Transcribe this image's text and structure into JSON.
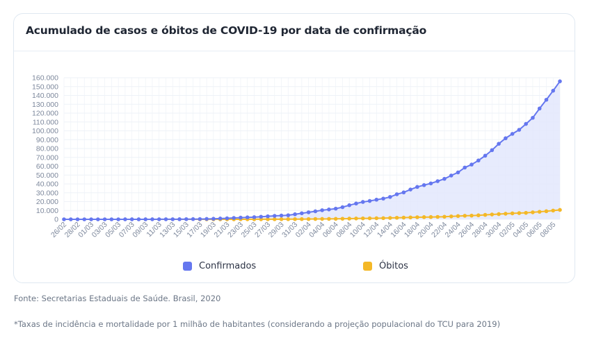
{
  "title": "Acumulado de casos e óbitos de COVID-19 por data de confirmação",
  "legend": {
    "confirmed_label": "Confirmados",
    "deaths_label": "Óbitos"
  },
  "colors": {
    "confirmed": "#6577ef",
    "confirmed_fill": "#e3e7fd",
    "deaths": "#f4b827",
    "grid": "#eef2f7",
    "axis_text": "#7d889c"
  },
  "footer": {
    "source": "Fonte: Secretarias Estaduais de Saúde. Brasil, 2020",
    "note": "*Taxas de incidência e mortalidade por 1 milhão de habitantes (considerando a projeção populacional do TCU para 2019)"
  },
  "chart_data": {
    "type": "area",
    "title": "Acumulado de casos e óbitos de COVID-19 por data de confirmação",
    "xlabel": "",
    "ylabel": "",
    "ylim": [
      0,
      160000
    ],
    "yticks": [
      "0",
      "10.000",
      "20.000",
      "30.000",
      "40.000",
      "50.000",
      "60.000",
      "70.000",
      "80.000",
      "90.000",
      "100.000",
      "110.000",
      "120.000",
      "130.000",
      "140.000",
      "150.000",
      "160.000"
    ],
    "x": [
      "26/02",
      "27/02",
      "28/02",
      "29/02",
      "01/03",
      "02/03",
      "03/03",
      "04/03",
      "05/03",
      "06/03",
      "07/03",
      "08/03",
      "09/03",
      "10/03",
      "11/03",
      "12/03",
      "13/03",
      "14/03",
      "15/03",
      "16/03",
      "17/03",
      "18/03",
      "19/03",
      "20/03",
      "21/03",
      "22/03",
      "23/03",
      "24/03",
      "25/03",
      "26/03",
      "27/03",
      "28/03",
      "29/03",
      "30/03",
      "31/03",
      "01/04",
      "02/04",
      "03/04",
      "04/04",
      "05/04",
      "06/04",
      "07/04",
      "08/04",
      "09/04",
      "10/04",
      "11/04",
      "12/04",
      "13/04",
      "14/04",
      "15/04",
      "16/04",
      "17/04",
      "18/04",
      "19/04",
      "20/04",
      "21/04",
      "22/04",
      "23/04",
      "24/04",
      "25/04",
      "26/04",
      "27/04",
      "28/04",
      "29/04",
      "30/04",
      "01/05",
      "02/05",
      "03/05",
      "04/05",
      "05/05",
      "06/05",
      "07/05",
      "08/05",
      "09/05"
    ],
    "x_tick_labels": [
      "26/02",
      "28/02",
      "01/03",
      "03/03",
      "05/03",
      "07/03",
      "09/03",
      "11/03",
      "13/03",
      "15/03",
      "17/03",
      "19/03",
      "21/03",
      "23/03",
      "25/03",
      "27/03",
      "29/03",
      "31/03",
      "02/04",
      "04/04",
      "06/04",
      "08/04",
      "10/04",
      "12/04",
      "14/04",
      "16/04",
      "18/04",
      "20/04",
      "22/04",
      "24/04",
      "26/04",
      "28/04",
      "30/04",
      "02/05",
      "04/05",
      "06/05",
      "08/05"
    ],
    "grid": true,
    "legend_position": "bottom",
    "series": [
      {
        "name": "Confirmados",
        "values": [
          1,
          1,
          1,
          2,
          2,
          2,
          2,
          3,
          8,
          13,
          19,
          25,
          25,
          34,
          52,
          77,
          98,
          121,
          200,
          234,
          291,
          428,
          621,
          904,
          1128,
          1546,
          1891,
          2201,
          2433,
          2915,
          3417,
          3904,
          4256,
          4579,
          5717,
          6836,
          7910,
          9056,
          10278,
          11130,
          12056,
          13717,
          15927,
          17857,
          19638,
          20727,
          22169,
          23430,
          25262,
          28320,
          30425,
          33682,
          36599,
          38654,
          40581,
          43079,
          45757,
          49492,
          52995,
          58509,
          61888,
          66501,
          71886,
          78162,
          85380,
          91589,
          96559,
          101147,
          107780,
          114715,
          125218,
          135106,
          145328,
          155939
        ]
      },
      {
        "name": "Óbitos",
        "values": [
          0,
          0,
          0,
          0,
          0,
          0,
          0,
          0,
          0,
          0,
          0,
          0,
          0,
          0,
          0,
          0,
          0,
          0,
          0,
          0,
          1,
          3,
          6,
          11,
          18,
          25,
          34,
          46,
          57,
          77,
          92,
          111,
          136,
          159,
          201,
          241,
          299,
          359,
          432,
          486,
          553,
          667,
          800,
          941,
          1056,
          1124,
          1223,
          1328,
          1532,
          1736,
          1924,
          2141,
          2347,
          2462,
          2575,
          2741,
          2906,
          3313,
          3670,
          4016,
          4205,
          4543,
          5017,
          5466,
          5901,
          6329,
          6750,
          7025,
          7321,
          7921,
          8536,
          9146,
          9897,
          10627
        ]
      }
    ]
  }
}
